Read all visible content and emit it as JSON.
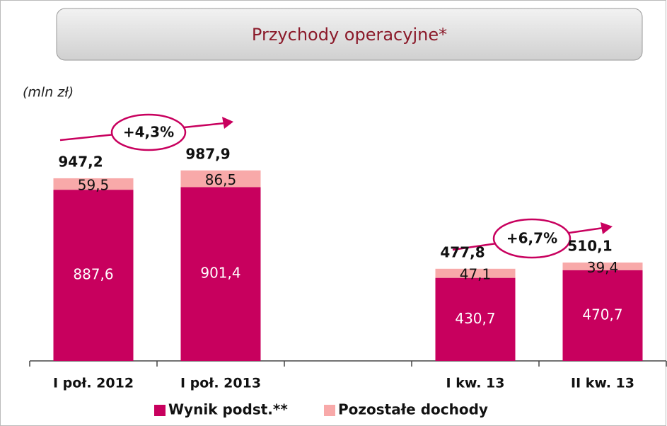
{
  "chart_data": {
    "type": "stacked_bar",
    "title": "Przychody operacyjne*",
    "subtitle": "(mln zł)",
    "categories": [
      "I poł. 2012",
      "I poł. 2013",
      null,
      "I kw. 13",
      "II kw. 13"
    ],
    "series": [
      {
        "name": "Wynik podst.**",
        "color": "#c8005e",
        "values": [
          887.6,
          901.4,
          null,
          430.7,
          470.7
        ],
        "value_labels": [
          "887,6",
          "901,4",
          null,
          "430,7",
          "470,7"
        ]
      },
      {
        "name": "Pozostałe dochody",
        "color": "#f8a9a9",
        "values": [
          59.5,
          86.5,
          null,
          47.1,
          39.4
        ],
        "value_labels": [
          "59,5",
          "86,5",
          null,
          "47,1",
          "39,4"
        ]
      }
    ],
    "totals": [
      947.2,
      987.9,
      null,
      477.8,
      510.1
    ],
    "total_labels": [
      "947,2",
      "987,9",
      null,
      "477,8",
      "510,1"
    ],
    "annotations": [
      "+4,3%",
      "+6,7%"
    ],
    "ylim": [
      0,
      1200
    ],
    "legend": "bottom"
  }
}
